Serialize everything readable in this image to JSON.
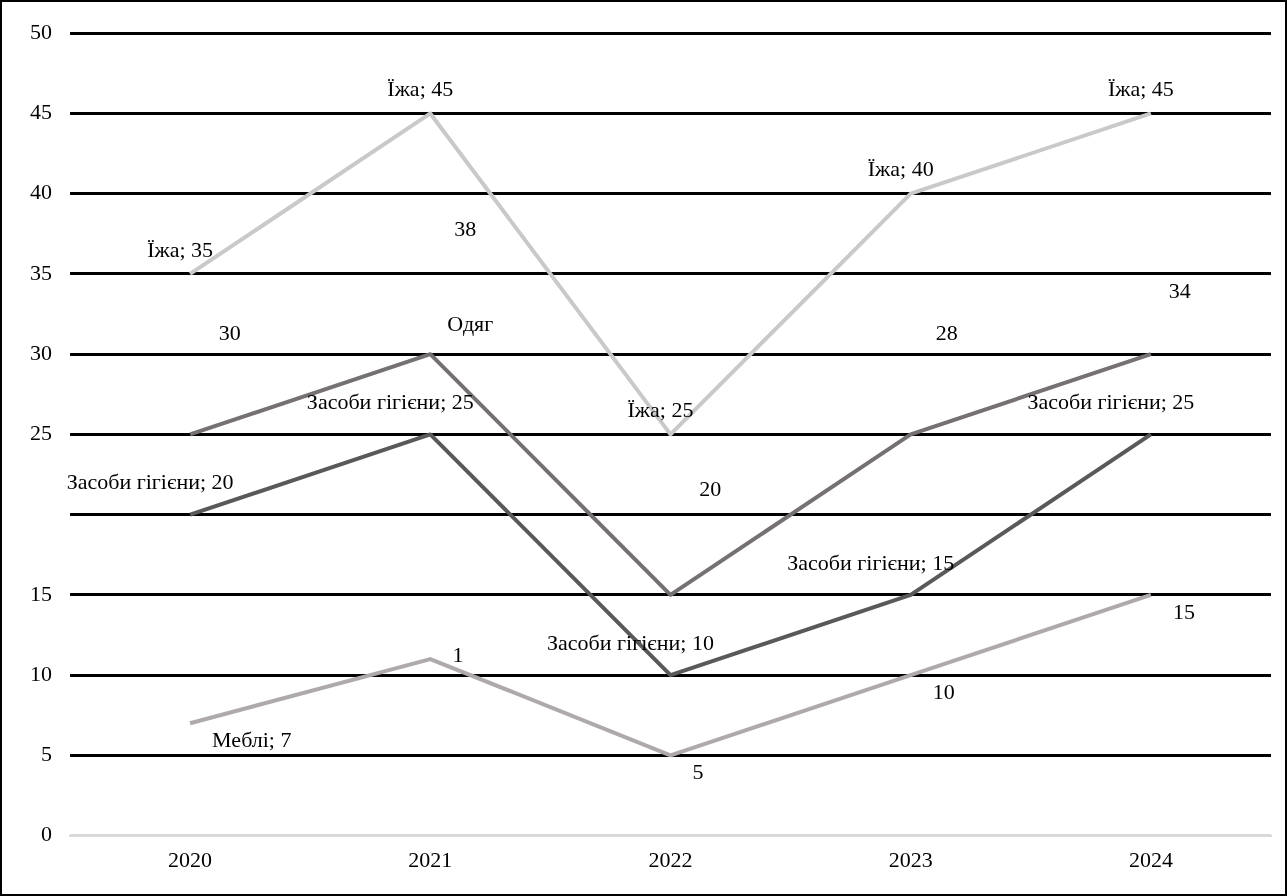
{
  "chart_data": {
    "type": "line",
    "categories": [
      "2020",
      "2021",
      "2022",
      "2023",
      "2024"
    ],
    "series": [
      {
        "color": "#c9c9c9",
        "values": [
          35,
          45,
          25,
          40,
          45
        ],
        "value_labels": [
          "Їжа; 35",
          "Їжа; 45",
          "Їжа; 25",
          "Їжа; 40",
          "Їжа; 45"
        ]
      },
      {
        "color": "#767171",
        "values": [
          25,
          30,
          15,
          25,
          30
        ],
        "value_labels": [
          null,
          "Одяг",
          null,
          null,
          null
        ]
      },
      {
        "color": "#595959",
        "values": [
          20,
          25,
          10,
          15,
          25
        ],
        "value_labels": [
          "Засоби гігієни; 20",
          "Засоби гігієни; 25",
          "Засоби гігієни; 10",
          "Засоби гігієни; 15",
          "Засоби гігієни; 25"
        ]
      },
      {
        "color": "#aeaaaa",
        "values": [
          7,
          11,
          5,
          10,
          15
        ],
        "value_labels": [
          "Меблі; 7",
          null,
          "5",
          "10",
          "15"
        ]
      }
    ],
    "annotations": [
      "30",
      "38",
      "1",
      "20",
      "28",
      "34"
    ],
    "ylim": [
      0,
      50
    ],
    "yticks": [
      0,
      5,
      10,
      15,
      {
        "value": 20,
        "label": null
      },
      25,
      30,
      35,
      40,
      45,
      50
    ],
    "grid": "y",
    "legend": false,
    "marker": "none",
    "line_style": "solid"
  }
}
